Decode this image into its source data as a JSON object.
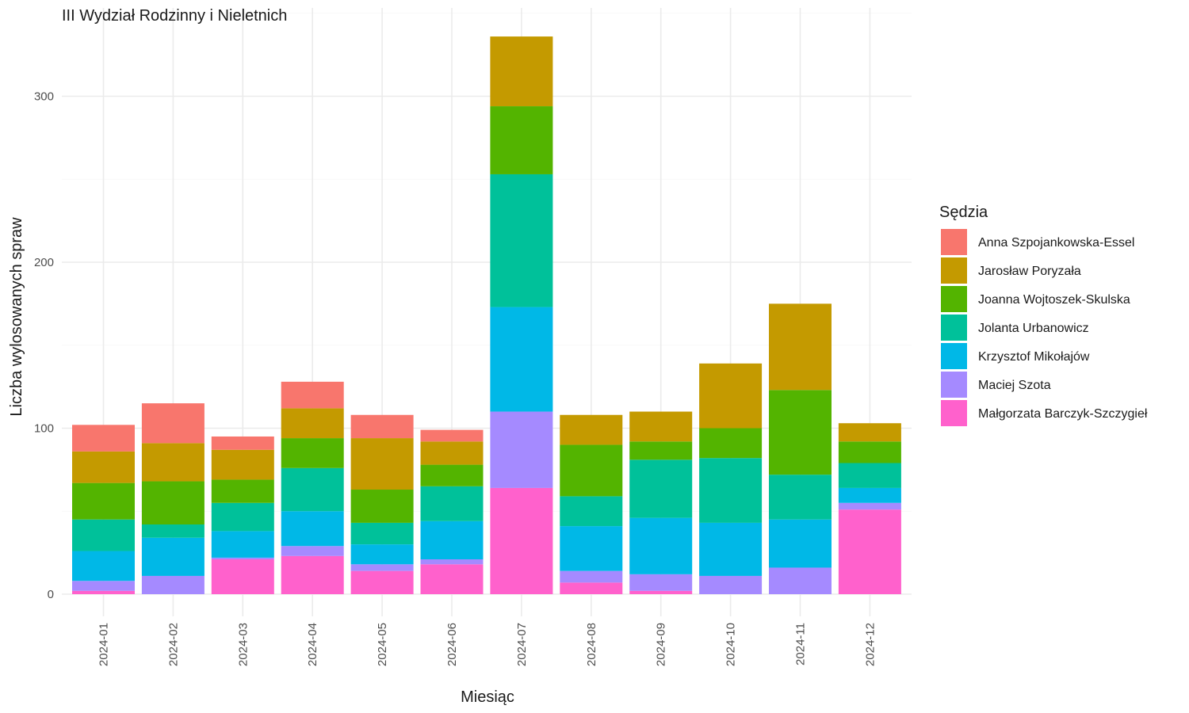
{
  "chart_data": {
    "type": "bar",
    "stacked": true,
    "title": "III Wydział Rodzinny i Nieletnich",
    "xlabel": "Miesiąc",
    "ylabel": "Liczba wylosowanych spraw",
    "ylim": [
      0,
      340
    ],
    "y_ticks": [
      "0",
      "100",
      "200",
      "300"
    ],
    "grid": true,
    "legend_title": "Sędzia",
    "legend_position": "right",
    "categories": [
      "2024-01",
      "2024-02",
      "2024-03",
      "2024-04",
      "2024-05",
      "2024-06",
      "2024-07",
      "2024-08",
      "2024-09",
      "2024-10",
      "2024-11",
      "2024-12"
    ],
    "series": [
      {
        "name": "Małgorzata Barczyk-Szczygieł",
        "color": "#FF61CC",
        "values": [
          2,
          0,
          21,
          23,
          14,
          18,
          64,
          7,
          2,
          0,
          0,
          51
        ]
      },
      {
        "name": "Maciej Szota",
        "color": "#A58AFF",
        "values": [
          6,
          11,
          1,
          6,
          4,
          3,
          46,
          7,
          10,
          11,
          16,
          4
        ]
      },
      {
        "name": "Krzysztof Mikołajów",
        "color": "#00B8E7",
        "values": [
          18,
          23,
          16,
          21,
          12,
          23,
          63,
          27,
          34,
          32,
          29,
          9
        ]
      },
      {
        "name": "Jolanta Urbanowicz",
        "color": "#00C19A",
        "values": [
          19,
          8,
          17,
          26,
          13,
          21,
          80,
          18,
          35,
          39,
          27,
          15
        ]
      },
      {
        "name": "Joanna Wojtoszek-Skulska",
        "color": "#53B400",
        "values": [
          22,
          26,
          14,
          18,
          20,
          13,
          41,
          31,
          11,
          18,
          51,
          13
        ]
      },
      {
        "name": "Jarosław Poryzała",
        "color": "#C49A00",
        "values": [
          19,
          23,
          18,
          18,
          31,
          14,
          42,
          18,
          18,
          39,
          52,
          11
        ]
      },
      {
        "name": "Anna Szpojankowska-Essel",
        "color": "#F8766D",
        "values": [
          16,
          24,
          8,
          16,
          14,
          7,
          0,
          0,
          0,
          0,
          0,
          0
        ]
      }
    ]
  }
}
